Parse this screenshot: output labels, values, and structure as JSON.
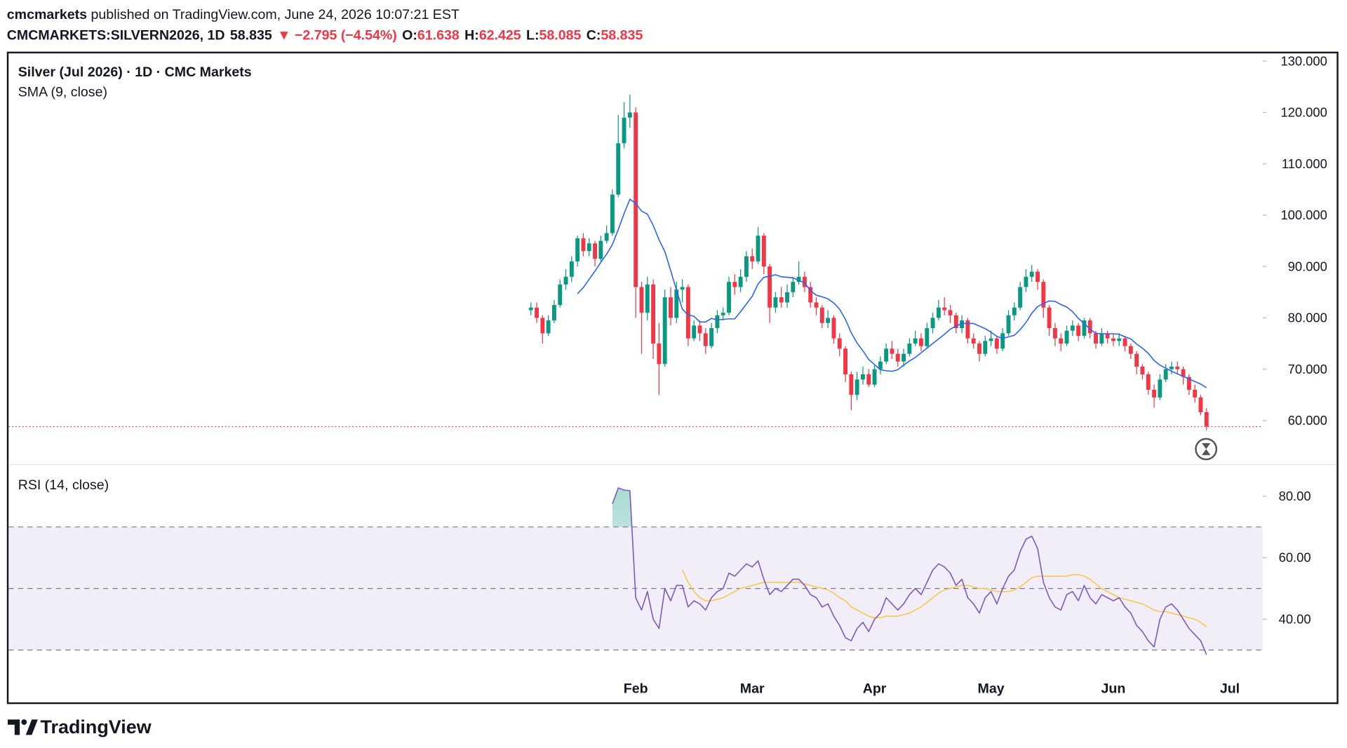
{
  "header": {
    "author": "cmcmarkets",
    "published": " published on TradingView.com, June 24, 2026 10:07:21 EST",
    "symbol": "CMCMARKETS:SILVERN2026, 1D",
    "last": "58.835",
    "change": "▼ −2.795 (−4.54%)",
    "color": "#f23645",
    "ohlc": [
      {
        "label": "O:",
        "value": "61.638"
      },
      {
        "label": "H:",
        "value": "62.425"
      },
      {
        "label": "L:",
        "value": "58.085"
      },
      {
        "label": "C:",
        "value": "58.835"
      }
    ]
  },
  "chart_data": [
    {
      "type": "candlestick",
      "title": "Silver (Jul 2026) · 1D · CMC Markets",
      "up_color": "#089981",
      "down_color": "#f23645",
      "categories": [
        null,
        null,
        null,
        null,
        null,
        null,
        null,
        null,
        null,
        null,
        null,
        null,
        null,
        null,
        null,
        null,
        null,
        null,
        "Feb",
        null,
        null,
        null,
        null,
        null,
        null,
        null,
        null,
        null,
        null,
        null,
        null,
        null,
        null,
        null,
        null,
        null,
        null,
        null,
        "Mar",
        null,
        null,
        null,
        null,
        null,
        null,
        null,
        null,
        null,
        null,
        null,
        null,
        null,
        null,
        null,
        null,
        null,
        null,
        null,
        null,
        "Apr",
        null,
        null,
        null,
        null,
        null,
        null,
        null,
        null,
        null,
        null,
        null,
        null,
        null,
        null,
        null,
        null,
        null,
        null,
        null,
        "May",
        null,
        null,
        null,
        null,
        null,
        null,
        null,
        null,
        null,
        null,
        null,
        null,
        null,
        null,
        null,
        null,
        null,
        null,
        null,
        null,
        "Jun",
        null,
        null,
        null,
        null,
        null,
        null,
        null,
        null,
        null,
        null,
        null,
        null,
        null,
        null,
        null,
        null,
        null,
        null,
        null,
        "Jul",
        null,
        null,
        null
      ],
      "open": [
        81.5,
        82,
        80,
        77,
        79.5,
        82.5,
        86.5,
        88,
        91,
        95.5,
        93,
        94.5,
        91.5,
        95,
        96.5,
        104,
        114,
        119,
        120,
        86,
        81,
        86.5,
        75,
        71,
        84,
        80,
        85.5,
        86,
        76,
        78.5,
        77,
        74.5,
        78,
        80.5,
        81,
        87,
        86,
        88,
        92,
        91,
        96,
        90,
        82,
        84,
        83,
        85,
        87,
        88,
        86,
        83,
        82,
        79,
        80,
        76,
        74,
        69,
        65,
        68,
        69,
        67,
        70,
        71.5,
        74,
        73,
        71.5,
        73,
        75,
        76,
        74.5,
        78,
        80,
        82,
        81.5,
        80.5,
        78,
        79.5,
        76,
        75,
        73,
        75.5,
        76,
        74,
        77,
        80.5,
        82,
        86,
        88,
        89,
        87,
        82,
        78,
        76,
        75,
        77.5,
        78.5,
        76.5,
        79.5,
        77,
        75,
        77,
        76,
        75.5,
        76,
        74.5,
        73,
        70.5,
        69,
        66,
        64.5,
        68,
        70,
        70.5,
        70,
        68.5,
        66,
        64.5,
        61.638,
        null,
        null,
        null,
        null,
        null,
        null,
        null
      ],
      "high": [
        83,
        83,
        80.5,
        80.5,
        83.5,
        87.5,
        89.5,
        92,
        96,
        96.5,
        95.5,
        95,
        96,
        98,
        105,
        119.5,
        122,
        123.5,
        121,
        87,
        88,
        87.5,
        79,
        85.5,
        86,
        87,
        87.5,
        86.5,
        79.5,
        79.5,
        78,
        79,
        81.5,
        82,
        88,
        88.5,
        89.5,
        93,
        93.5,
        97.7,
        96.5,
        90.5,
        85,
        86,
        86.5,
        88,
        91,
        89,
        87,
        84,
        82.5,
        81.5,
        80.5,
        77,
        74.5,
        69.5,
        69.5,
        70.5,
        70,
        71,
        72.5,
        75,
        75.5,
        74,
        74,
        76,
        77.5,
        77,
        79,
        81,
        83.5,
        84,
        82.5,
        81,
        80.5,
        80,
        77,
        75.5,
        76.5,
        77.5,
        76.5,
        78,
        81.5,
        83,
        87,
        89.5,
        90.3,
        89.5,
        87.5,
        82.5,
        79,
        77,
        78.5,
        79.5,
        79,
        80,
        80,
        77.5,
        78,
        77.5,
        77,
        77,
        76.5,
        75,
        73.5,
        71,
        69.5,
        67,
        69,
        71,
        71.5,
        71.5,
        70.5,
        69,
        67,
        65,
        62.425,
        null,
        null,
        null,
        null,
        null,
        null,
        null
      ],
      "low": [
        80.5,
        79,
        75,
        76.5,
        79,
        82,
        85.5,
        87,
        90,
        92,
        92,
        90,
        91,
        94.5,
        96,
        103.5,
        113,
        117,
        80,
        73,
        79.5,
        72,
        65,
        70.5,
        78.5,
        79,
        83,
        74.5,
        75.5,
        75.5,
        73,
        74,
        77,
        79.5,
        80.5,
        84.5,
        85,
        87,
        89.5,
        90.5,
        88.5,
        79,
        81,
        82,
        82,
        84,
        86.5,
        85,
        82,
        80.5,
        78,
        78,
        75,
        72.5,
        67.5,
        62,
        64,
        67,
        66.5,
        66.5,
        69,
        71,
        72,
        70.5,
        70.5,
        72.5,
        74.5,
        73.5,
        74,
        77,
        79.5,
        80.5,
        79,
        77,
        77,
        75,
        74,
        71.5,
        72.5,
        74.5,
        73,
        73.5,
        76.5,
        79.5,
        81.5,
        85,
        87,
        85.5,
        80,
        76.5,
        74.5,
        73.5,
        74.5,
        76.5,
        75.5,
        76,
        76,
        74,
        74.5,
        75,
        74.5,
        74.5,
        73.5,
        72,
        69,
        68,
        65,
        62.5,
        64,
        67.5,
        69,
        69,
        67,
        65,
        63.5,
        61,
        58.085,
        null,
        null,
        null,
        null,
        null,
        null,
        null
      ],
      "close": [
        82,
        80,
        77,
        79.5,
        82.5,
        86.5,
        88,
        91,
        95.5,
        93,
        94.5,
        91.5,
        95,
        96.5,
        104,
        114,
        119,
        120,
        86,
        81,
        86.5,
        75,
        71,
        84,
        80,
        85.5,
        86,
        76,
        78.5,
        77,
        74.5,
        78,
        80.5,
        81,
        87,
        86,
        88,
        92,
        91,
        96,
        90,
        82,
        84,
        83,
        85,
        87,
        88,
        86,
        83,
        82,
        79,
        80,
        76,
        74,
        69,
        65,
        68,
        69,
        67,
        70,
        71.5,
        74,
        73,
        71.5,
        73,
        75,
        76,
        74.5,
        78,
        80,
        82,
        81.5,
        80.5,
        78,
        79.5,
        76,
        75,
        73,
        75.5,
        76,
        74,
        77,
        80.5,
        82,
        86,
        88,
        89,
        87,
        82,
        78,
        76,
        75,
        77.5,
        78.5,
        76.5,
        79.5,
        77,
        75,
        77,
        76,
        75.5,
        76,
        74.5,
        73,
        70.5,
        69,
        66,
        64.5,
        68,
        70,
        70.5,
        70,
        68.5,
        66,
        64.5,
        61.63,
        58.835,
        null,
        null,
        null,
        null,
        null,
        null,
        null
      ],
      "series": [
        {
          "name": "SMA (9, close)",
          "color": "#2962ff",
          "values": [
            null,
            null,
            null,
            null,
            null,
            null,
            null,
            null,
            84.7,
            85.9,
            87.5,
            89.1,
            90.8,
            92.4,
            94.3,
            97.2,
            100.3,
            103.1,
            102.3,
            100.8,
            100.2,
            98.0,
            95.2,
            92.9,
            89.2,
            85.4,
            81.7,
            80.6,
            80.3,
            79.2,
            79.2,
            79.9,
            79.6,
            79.7,
            79.8,
            79.8,
            81.2,
            82.7,
            84.2,
            86.6,
            87.9,
            88.1,
            88.4,
            88.0,
            87.9,
            87.8,
            87.3,
            86.8,
            85.3,
            84.4,
            84.1,
            83.7,
            82.9,
            81.7,
            79.7,
            77.1,
            75.1,
            73.6,
            71.9,
            70.9,
            69.9,
            69.7,
            69.6,
            69.9,
            70.8,
            71.6,
            72.3,
            73.2,
            74.1,
            75.0,
            75.9,
            76.8,
            77.8,
            78.4,
            78.9,
            78.9,
            78.9,
            78.4,
            77.9,
            77.2,
            76.4,
            76.0,
            76.3,
            76.6,
            77.7,
            79.1,
            80.9,
            82.2,
            82.8,
            83.3,
            83.2,
            82.6,
            82.1,
            81.2,
            79.9,
            78.9,
            77.8,
            77.0,
            76.9,
            76.9,
            76.9,
            76.8,
            76.3,
            75.9,
            74.9,
            74.1,
            73.1,
            71.7,
            70.8,
            70.2,
            69.6,
            69.1,
            68.6,
            68.1,
            67.6,
            67.1,
            66.4,
            null,
            null,
            null,
            null,
            null,
            null,
            null
          ]
        }
      ],
      "price_line": 58.835,
      "price_line_color": "#f23645",
      "ylim": [
        51.6,
        131.5
      ],
      "yticks": [
        {
          "value": 60,
          "label": "60.000"
        },
        {
          "value": 70,
          "label": "70.000"
        },
        {
          "value": 80,
          "label": "80.000"
        },
        {
          "value": 90,
          "label": "90.000"
        },
        {
          "value": 100,
          "label": "100.000"
        },
        {
          "value": 110,
          "label": "110.000"
        },
        {
          "value": 120,
          "label": "120.000"
        },
        {
          "value": 130,
          "label": "130.000"
        }
      ],
      "grid": false
    },
    {
      "type": "line",
      "series": [
        {
          "name": "RSI (14, close)",
          "color": "#7e57c2",
          "values": [
            null,
            null,
            null,
            null,
            null,
            null,
            null,
            null,
            null,
            null,
            null,
            null,
            null,
            null,
            77.5,
            82.7,
            82,
            81.8,
            47,
            43,
            49,
            40,
            37,
            50,
            46,
            51,
            51,
            44,
            46,
            45,
            43,
            47,
            49,
            50,
            55,
            54,
            56,
            58,
            57,
            59,
            53,
            48,
            50,
            49,
            51,
            53,
            53,
            51,
            48,
            47,
            44,
            45,
            41,
            38,
            34,
            33,
            37,
            39,
            36,
            40,
            42,
            47,
            45,
            43,
            45,
            48,
            50,
            48,
            52,
            56,
            58,
            57,
            55,
            51,
            53,
            47,
            45,
            42,
            47,
            49,
            45,
            50,
            54,
            56,
            62,
            66,
            67,
            63,
            52,
            47,
            44,
            43,
            48,
            49,
            46,
            51,
            47,
            45,
            48,
            47,
            46,
            47,
            44,
            42,
            38,
            36,
            33,
            31,
            40,
            44,
            45,
            43,
            40,
            37,
            35,
            33,
            28.5,
            null,
            null,
            null,
            null,
            null,
            null,
            null
          ]
        },
        {
          "color": "#f7c948",
          "values": [
            null,
            null,
            null,
            null,
            null,
            null,
            null,
            null,
            null,
            null,
            null,
            null,
            null,
            null,
            null,
            null,
            null,
            null,
            null,
            null,
            null,
            null,
            null,
            null,
            null,
            null,
            56,
            52,
            49,
            47,
            46,
            46,
            46.5,
            47,
            48,
            49,
            50,
            50.5,
            51,
            51.5,
            52,
            52,
            52,
            52,
            52,
            52,
            52,
            51.5,
            51,
            50.5,
            50,
            49.5,
            48.5,
            47,
            46,
            44,
            43,
            42,
            41,
            40.5,
            40.5,
            41,
            41,
            41,
            41.5,
            42,
            43,
            44,
            45.5,
            47,
            48.5,
            49.5,
            50,
            50.5,
            51,
            51,
            50.5,
            50,
            50,
            49.5,
            49,
            49,
            49,
            49.5,
            50.5,
            52,
            53.5,
            54,
            54,
            54,
            54,
            54,
            54,
            54.5,
            54.5,
            54,
            53,
            51.5,
            50,
            49,
            48,
            47,
            46.5,
            46,
            45.5,
            45,
            44,
            43,
            42.5,
            42.5,
            42,
            41.5,
            41,
            40.5,
            40,
            39,
            37.5,
            null,
            null,
            null,
            null,
            null,
            null,
            null
          ]
        }
      ],
      "levels": [
        30,
        50,
        70
      ],
      "ylim": [
        22.2,
        90
      ],
      "yticks": [
        {
          "value": 40,
          "label": "40.00"
        },
        {
          "value": 60,
          "label": "60.00"
        },
        {
          "value": 80,
          "label": "80.00"
        }
      ],
      "grid": false
    }
  ],
  "footer": {
    "brand": "TradingView"
  }
}
